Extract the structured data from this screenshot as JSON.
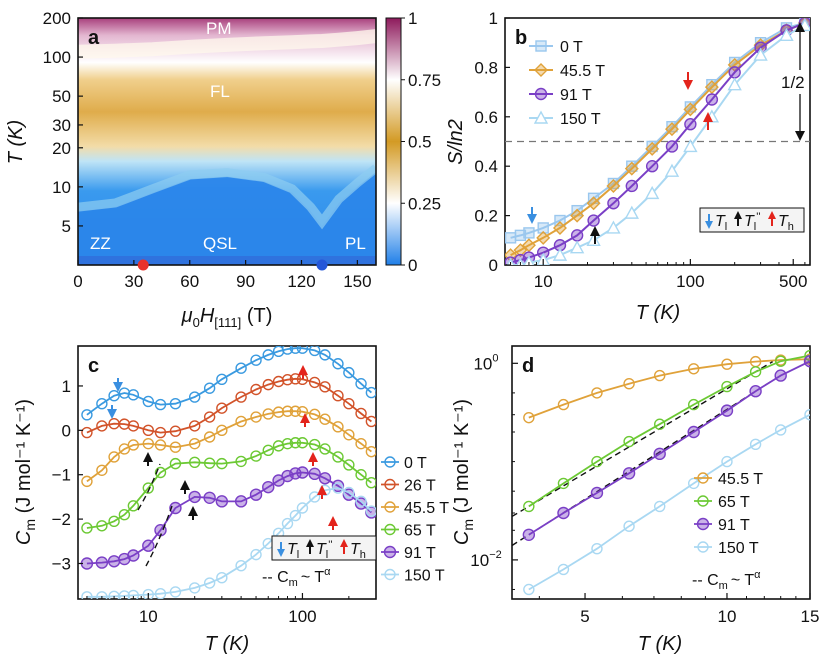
{
  "chart_data": [
    {
      "panel": "a",
      "type": "heatmap",
      "xlabel": "μ0H[111] (T)",
      "ylabel": "T (K)",
      "xlim": [
        0,
        160
      ],
      "ylim": [
        2.5,
        200
      ],
      "yscale": "log",
      "xticks": [
        "0",
        "30",
        "60",
        "90",
        "120",
        "150"
      ],
      "yticks": [
        "5",
        "10",
        "20",
        "30",
        "50",
        "100",
        "200"
      ],
      "colorbar": {
        "min": 0,
        "max": 1,
        "ticks": [
          "0",
          "0.25",
          "0.5",
          "0.75",
          "1"
        ],
        "colors": [
          "#1f7fe8",
          "#ffffff",
          "#d39a24",
          "#ffffff",
          "#8e1a5c"
        ]
      },
      "regions": [
        "PM",
        "FL",
        "QSL",
        "ZZ",
        "PL"
      ],
      "markers": [
        {
          "field": 35,
          "color": "#e8322a"
        },
        {
          "field": 131,
          "color": "#2456d8"
        }
      ],
      "boundaries": {
        "field": [
          0,
          20,
          40,
          60,
          80,
          100,
          115,
          125,
          131,
          140,
          150,
          160
        ],
        "low_T": [
          6.5,
          7,
          9,
          11.5,
          12,
          11,
          9,
          6.5,
          5,
          7.5,
          10,
          13
        ],
        "high_T": [
          110,
          112,
          115,
          120,
          124,
          128,
          130,
          132,
          133,
          136,
          140,
          145
        ]
      }
    },
    {
      "panel": "b",
      "type": "line",
      "xlabel": "T (K)",
      "ylabel": "S/ln2",
      "xscale": "log",
      "xlim": [
        5.5,
        650
      ],
      "ylim": [
        0,
        1
      ],
      "xticks": [
        "10",
        "100",
        "500"
      ],
      "yticks": [
        "0",
        "0.2",
        "0.4",
        "0.6",
        "0.8",
        "1"
      ],
      "reference_line": 0.5,
      "annotation": "1/2",
      "legend_box": [
        "Tl",
        "Tl''",
        "Th"
      ],
      "series": [
        {
          "name": "0 T",
          "color": "#9ac7ee",
          "marker": "square",
          "x": [
            6,
            7,
            8,
            10,
            13,
            17,
            22,
            30,
            40,
            55,
            75,
            100,
            140,
            200,
            300,
            450,
            600
          ],
          "y": [
            0.11,
            0.12,
            0.13,
            0.15,
            0.18,
            0.22,
            0.27,
            0.33,
            0.4,
            0.48,
            0.56,
            0.64,
            0.73,
            0.82,
            0.9,
            0.96,
            0.98
          ]
        },
        {
          "name": "45.5 T",
          "color": "#e0a23a",
          "marker": "diamond",
          "x": [
            6,
            7,
            8,
            10,
            13,
            17,
            22,
            30,
            40,
            55,
            75,
            100,
            140,
            200,
            300,
            450,
            600
          ],
          "y": [
            0.04,
            0.06,
            0.08,
            0.11,
            0.15,
            0.2,
            0.25,
            0.32,
            0.39,
            0.47,
            0.55,
            0.63,
            0.72,
            0.81,
            0.89,
            0.95,
            0.98
          ]
        },
        {
          "name": "91 T",
          "color": "#7a3fc6",
          "marker": "circle",
          "x": [
            6,
            7,
            8,
            10,
            13,
            17,
            22,
            30,
            40,
            55,
            75,
            100,
            140,
            200,
            300,
            450,
            600
          ],
          "y": [
            0.01,
            0.02,
            0.03,
            0.05,
            0.08,
            0.12,
            0.18,
            0.25,
            0.32,
            0.4,
            0.48,
            0.57,
            0.67,
            0.78,
            0.88,
            0.95,
            0.98
          ]
        },
        {
          "name": "150 T",
          "color": "#a9d8f2",
          "marker": "triangle",
          "x": [
            6,
            7,
            8,
            10,
            13,
            17,
            22,
            30,
            40,
            55,
            75,
            100,
            140,
            200,
            300,
            450,
            600
          ],
          "y": [
            0.0,
            0.0,
            0.01,
            0.02,
            0.04,
            0.07,
            0.1,
            0.15,
            0.21,
            0.29,
            0.38,
            0.48,
            0.6,
            0.73,
            0.85,
            0.93,
            0.97
          ]
        }
      ]
    },
    {
      "panel": "c",
      "type": "line",
      "xlabel": "T (K)",
      "ylabel": "Cm (J mol-1 K-1)",
      "xscale": "log",
      "xlim": [
        3.5,
        300
      ],
      "ylim": [
        -3.8,
        1.9
      ],
      "xticks": [
        "10",
        "100"
      ],
      "yticks": [
        "-3",
        "-2",
        "-1",
        "0",
        "1"
      ],
      "legend_box": [
        "Tl",
        "Tl''",
        "Th"
      ],
      "fit_label": "Cm ~ Tα",
      "series": [
        {
          "name": "0 T",
          "color": "#3a9ae0",
          "x": [
            4,
            5,
            6,
            7,
            8,
            10,
            12,
            15,
            20,
            25,
            30,
            40,
            50,
            60,
            70,
            80,
            90,
            100,
            120,
            140,
            170,
            200,
            240,
            280
          ],
          "y": [
            0.35,
            0.6,
            0.78,
            0.84,
            0.8,
            0.65,
            0.58,
            0.6,
            0.75,
            0.95,
            1.15,
            1.4,
            1.58,
            1.7,
            1.78,
            1.83,
            1.85,
            1.85,
            1.8,
            1.7,
            1.5,
            1.3,
            1.05,
            0.85
          ]
        },
        {
          "name": "26 T",
          "color": "#d2532a",
          "x": [
            4,
            5,
            6,
            7,
            8,
            10,
            12,
            15,
            20,
            25,
            30,
            40,
            50,
            60,
            70,
            80,
            90,
            100,
            120,
            140,
            170,
            200,
            240,
            280
          ],
          "y": [
            -0.05,
            0.1,
            0.15,
            0.14,
            0.1,
            0.0,
            -0.05,
            -0.02,
            0.1,
            0.3,
            0.5,
            0.75,
            0.92,
            1.03,
            1.1,
            1.14,
            1.16,
            1.15,
            1.08,
            0.98,
            0.78,
            0.6,
            0.38,
            0.2
          ]
        },
        {
          "name": "45.5 T",
          "color": "#e0a23a",
          "x": [
            4,
            5,
            6,
            7,
            8,
            10,
            12,
            15,
            20,
            25,
            30,
            40,
            50,
            60,
            70,
            80,
            90,
            100,
            120,
            140,
            170,
            200,
            240,
            280
          ],
          "y": [
            -1.15,
            -0.9,
            -0.6,
            -0.42,
            -0.33,
            -0.3,
            -0.33,
            -0.38,
            -0.3,
            -0.15,
            0.0,
            0.2,
            0.3,
            0.37,
            0.41,
            0.43,
            0.43,
            0.42,
            0.36,
            0.25,
            0.08,
            -0.1,
            -0.3,
            -0.48
          ]
        },
        {
          "name": "65 T",
          "color": "#6cc934",
          "x": [
            4,
            5,
            6,
            7,
            8,
            10,
            12,
            15,
            20,
            25,
            30,
            40,
            50,
            60,
            70,
            80,
            90,
            100,
            120,
            140,
            170,
            200,
            240,
            280
          ],
          "y": [
            -2.2,
            -2.15,
            -2.05,
            -1.9,
            -1.7,
            -1.3,
            -0.95,
            -0.75,
            -0.72,
            -0.74,
            -0.75,
            -0.7,
            -0.58,
            -0.45,
            -0.35,
            -0.3,
            -0.28,
            -0.28,
            -0.32,
            -0.42,
            -0.6,
            -0.78,
            -1.0,
            -1.18
          ]
        },
        {
          "name": "91 T",
          "color": "#7a3fc6",
          "x": [
            4,
            5,
            6,
            7,
            8,
            10,
            12,
            15,
            20,
            25,
            30,
            40,
            50,
            60,
            70,
            80,
            90,
            100,
            120,
            140,
            170,
            200,
            240,
            280
          ],
          "y": [
            -3.0,
            -2.98,
            -2.95,
            -2.9,
            -2.82,
            -2.6,
            -2.25,
            -1.75,
            -1.5,
            -1.52,
            -1.6,
            -1.6,
            -1.45,
            -1.28,
            -1.13,
            -1.03,
            -0.97,
            -0.95,
            -0.98,
            -1.08,
            -1.25,
            -1.45,
            -1.65,
            -1.85
          ]
        },
        {
          "name": "150 T",
          "color": "#a9d8f2",
          "x": [
            4,
            5,
            6,
            7,
            8,
            10,
            12,
            15,
            20,
            25,
            30,
            40,
            50,
            60,
            70,
            80,
            90,
            100,
            120,
            140,
            170,
            200,
            240,
            280
          ],
          "y": [
            -3.75,
            -3.75,
            -3.74,
            -3.73,
            -3.72,
            -3.7,
            -3.68,
            -3.64,
            -3.55,
            -3.44,
            -3.32,
            -3.05,
            -2.8,
            -2.55,
            -2.32,
            -2.1,
            -1.92,
            -1.75,
            -1.5,
            -1.35,
            -1.3,
            -1.4,
            -1.6,
            -1.82
          ]
        }
      ]
    },
    {
      "panel": "d",
      "type": "line",
      "xlabel": "T (K)",
      "ylabel": "Cm (J mol-1 K-1)",
      "xscale": "log",
      "yscale": "log",
      "xlim": [
        3.5,
        15
      ],
      "ylim": [
        0.004,
        1.5
      ],
      "xticks": [
        "5",
        "10",
        "15"
      ],
      "ytick_labels": [
        "10-2",
        "100"
      ],
      "fit_label": "Cm ~ Tα",
      "series": [
        {
          "name": "45.5 T",
          "color": "#e0a23a",
          "x": [
            3.8,
            4.5,
            5.3,
            6.2,
            7.2,
            8.5,
            10,
            11.5,
            13,
            15
          ],
          "y": [
            0.28,
            0.38,
            0.5,
            0.62,
            0.75,
            0.88,
            0.98,
            1.04,
            1.08,
            1.1
          ]
        },
        {
          "name": "65 T",
          "color": "#6cc934",
          "x": [
            3.8,
            4.5,
            5.3,
            6.2,
            7.2,
            8.5,
            10,
            11.5,
            13,
            15
          ],
          "y": [
            0.035,
            0.06,
            0.1,
            0.16,
            0.24,
            0.38,
            0.58,
            0.82,
            1.05,
            1.2
          ]
        },
        {
          "name": "91 T",
          "color": "#7a3fc6",
          "x": [
            3.8,
            4.5,
            5.3,
            6.2,
            7.2,
            8.5,
            10,
            11.5,
            13,
            15
          ],
          "y": [
            0.018,
            0.03,
            0.048,
            0.076,
            0.12,
            0.2,
            0.33,
            0.52,
            0.75,
            1.05
          ]
        },
        {
          "name": "150 T",
          "color": "#a9d8f2",
          "x": [
            3.8,
            4.5,
            5.3,
            6.2,
            7.2,
            8.5,
            10,
            11.5,
            13,
            15
          ],
          "y": [
            0.005,
            0.008,
            0.013,
            0.022,
            0.035,
            0.06,
            0.1,
            0.15,
            0.21,
            0.3
          ]
        }
      ]
    }
  ],
  "labels": {
    "a": "a",
    "b": "b",
    "c": "c",
    "d": "d",
    "PM": "PM",
    "FL": "FL",
    "QSL": "QSL",
    "ZZ": "ZZ",
    "PL": "PL",
    "half": "1/2",
    "a_ylabel": "T (K)",
    "a_xlabel_main": "μ",
    "a_xlabel_sub0": "0",
    "a_xlabel_H": "H",
    "a_xlabel_sub111": "[111]",
    "a_xlabel_unit": " (T)",
    "b_ylabel": "S/ln2",
    "b_xlabel": "T (K)",
    "c_ylabel": "C",
    "c_ylabel_sub": "m",
    "c_ylabel_unit": " (J mol⁻¹ K⁻¹)",
    "c_xlabel": "T (K)",
    "d_ylabel": "C",
    "d_ylabel_sub": "m",
    "d_ylabel_unit": " (J mol⁻¹ K⁻¹)",
    "d_xlabel": "T (K)",
    "leg_Tl": "T",
    "leg_Tl_sub": "l",
    "leg_Tll_sup": "''",
    "leg_Th_sub": "h",
    "fit_C": "-- C",
    "fit_m": "m",
    "fit_rest": "~ T",
    "fit_alpha": "α"
  }
}
